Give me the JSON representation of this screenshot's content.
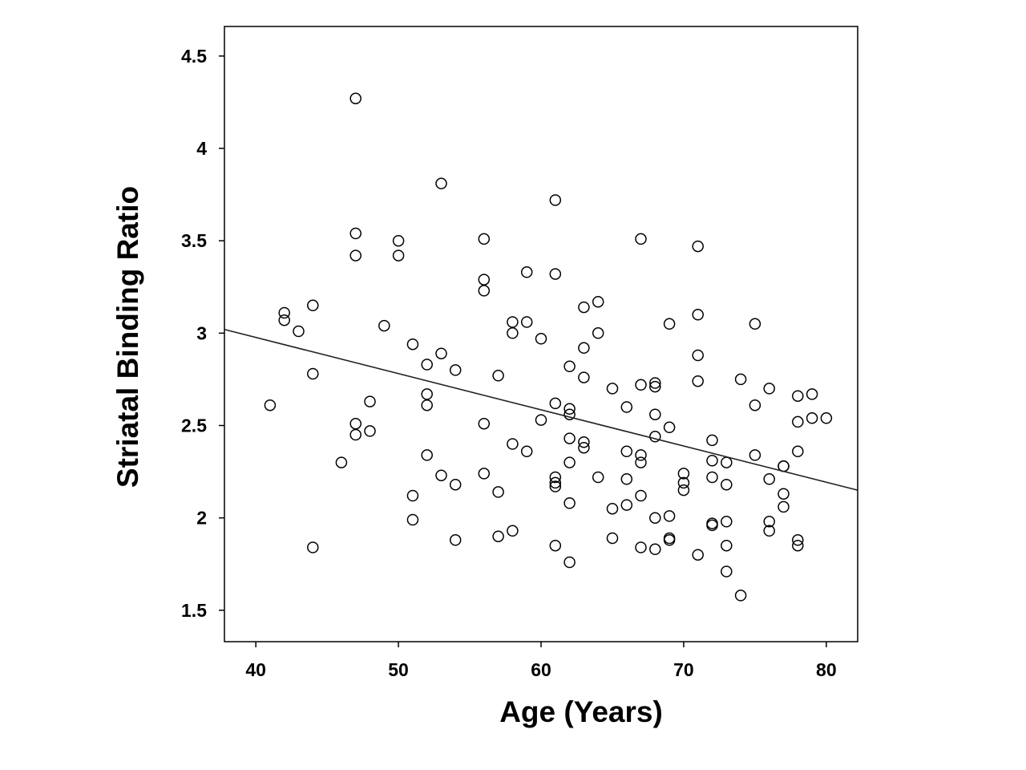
{
  "chart_data": {
    "type": "scatter",
    "title": "",
    "xlabel": "Age (Years)",
    "ylabel": "Striatal Binding Ratio",
    "xlim": [
      37.8,
      82.2
    ],
    "ylim": [
      1.33,
      4.66
    ],
    "xticks": [
      40,
      50,
      60,
      70,
      80
    ],
    "yticks": [
      1.5,
      2,
      2.5,
      3,
      3.5,
      4,
      4.5
    ],
    "xtick_labels": [
      "40",
      "50",
      "60",
      "70",
      "80"
    ],
    "ytick_labels": [
      "1.5",
      "2",
      "2.5",
      "3",
      "3.5",
      "4",
      "4.5"
    ],
    "grid": false,
    "legend": "none",
    "marker_color": "#000000",
    "trendline": {
      "x": [
        37.8,
        82.2
      ],
      "y": [
        3.02,
        2.15
      ]
    },
    "points": [
      [
        41,
        2.61
      ],
      [
        42,
        3.11
      ],
      [
        42,
        3.07
      ],
      [
        43,
        3.01
      ],
      [
        44,
        3.15
      ],
      [
        44,
        2.78
      ],
      [
        44,
        1.84
      ],
      [
        46,
        2.3
      ],
      [
        47,
        4.27
      ],
      [
        47,
        3.54
      ],
      [
        47,
        3.42
      ],
      [
        47,
        2.51
      ],
      [
        47,
        2.45
      ],
      [
        48,
        2.63
      ],
      [
        48,
        2.47
      ],
      [
        49,
        3.04
      ],
      [
        50,
        3.5
      ],
      [
        50,
        3.42
      ],
      [
        51,
        2.94
      ],
      [
        51,
        2.12
      ],
      [
        51,
        1.99
      ],
      [
        52,
        2.83
      ],
      [
        52,
        2.67
      ],
      [
        52,
        2.61
      ],
      [
        52,
        2.34
      ],
      [
        53,
        3.81
      ],
      [
        53,
        2.89
      ],
      [
        53,
        2.23
      ],
      [
        54,
        2.8
      ],
      [
        54,
        2.18
      ],
      [
        54,
        1.88
      ],
      [
        56,
        3.51
      ],
      [
        56,
        3.29
      ],
      [
        56,
        3.23
      ],
      [
        56,
        2.51
      ],
      [
        56,
        2.24
      ],
      [
        57,
        2.77
      ],
      [
        57,
        2.14
      ],
      [
        57,
        1.9
      ],
      [
        58,
        3.06
      ],
      [
        58,
        3.0
      ],
      [
        58,
        2.4
      ],
      [
        58,
        1.93
      ],
      [
        59,
        3.33
      ],
      [
        59,
        3.06
      ],
      [
        59,
        2.36
      ],
      [
        60,
        2.97
      ],
      [
        60,
        2.53
      ],
      [
        61,
        3.72
      ],
      [
        61,
        3.32
      ],
      [
        61,
        2.62
      ],
      [
        61,
        2.22
      ],
      [
        61,
        2.19
      ],
      [
        61,
        2.17
      ],
      [
        61,
        1.85
      ],
      [
        62,
        2.82
      ],
      [
        62,
        2.59
      ],
      [
        62,
        2.56
      ],
      [
        62,
        2.43
      ],
      [
        62,
        2.3
      ],
      [
        62,
        2.08
      ],
      [
        62,
        1.76
      ],
      [
        63,
        3.14
      ],
      [
        63,
        2.92
      ],
      [
        63,
        2.76
      ],
      [
        63,
        2.41
      ],
      [
        63,
        2.38
      ],
      [
        64,
        3.17
      ],
      [
        64,
        3.0
      ],
      [
        64,
        2.22
      ],
      [
        65,
        2.7
      ],
      [
        65,
        2.05
      ],
      [
        65,
        1.89
      ],
      [
        66,
        2.6
      ],
      [
        66,
        2.36
      ],
      [
        66,
        2.21
      ],
      [
        66,
        2.07
      ],
      [
        67,
        3.51
      ],
      [
        67,
        2.72
      ],
      [
        67,
        2.34
      ],
      [
        67,
        2.3
      ],
      [
        67,
        2.12
      ],
      [
        67,
        1.84
      ],
      [
        68,
        2.73
      ],
      [
        68,
        2.71
      ],
      [
        68,
        2.56
      ],
      [
        68,
        2.44
      ],
      [
        68,
        2.0
      ],
      [
        68,
        1.83
      ],
      [
        69,
        3.05
      ],
      [
        69,
        2.49
      ],
      [
        69,
        2.01
      ],
      [
        69,
        1.89
      ],
      [
        69,
        1.88
      ],
      [
        70,
        2.24
      ],
      [
        70,
        2.19
      ],
      [
        70,
        2.15
      ],
      [
        71,
        3.47
      ],
      [
        71,
        3.1
      ],
      [
        71,
        2.88
      ],
      [
        71,
        2.74
      ],
      [
        71,
        1.8
      ],
      [
        72,
        2.42
      ],
      [
        72,
        2.31
      ],
      [
        72,
        2.22
      ],
      [
        72,
        1.97
      ],
      [
        72,
        1.96
      ],
      [
        73,
        2.3
      ],
      [
        73,
        2.18
      ],
      [
        73,
        1.98
      ],
      [
        73,
        1.85
      ],
      [
        73,
        1.71
      ],
      [
        74,
        2.75
      ],
      [
        74,
        1.58
      ],
      [
        75,
        3.05
      ],
      [
        75,
        2.61
      ],
      [
        75,
        2.34
      ],
      [
        76,
        2.7
      ],
      [
        76,
        2.21
      ],
      [
        76,
        1.98
      ],
      [
        76,
        1.93
      ],
      [
        77,
        2.28
      ],
      [
        77,
        2.28
      ],
      [
        77,
        2.13
      ],
      [
        77,
        2.06
      ],
      [
        78,
        2.66
      ],
      [
        78,
        2.52
      ],
      [
        78,
        2.36
      ],
      [
        78,
        1.88
      ],
      [
        78,
        1.85
      ],
      [
        79,
        2.67
      ],
      [
        79,
        2.54
      ],
      [
        80,
        2.54
      ]
    ]
  }
}
